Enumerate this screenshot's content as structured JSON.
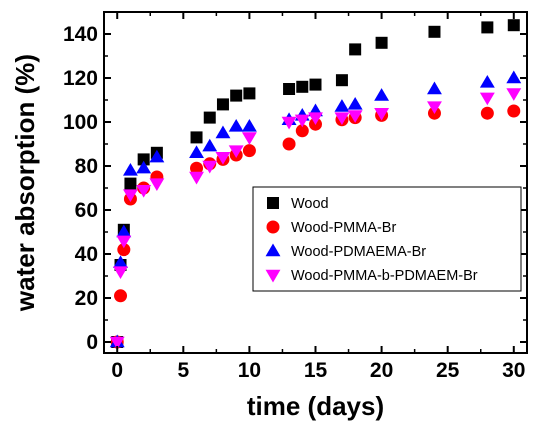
{
  "chart_data": {
    "type": "scatter",
    "title": "",
    "xlabel": "time (days)",
    "ylabel": "water absorption (%)",
    "xlim": [
      -1,
      31
    ],
    "ylim": [
      -5,
      150
    ],
    "xticks": [
      0,
      5,
      10,
      15,
      20,
      25,
      30
    ],
    "yticks": [
      0,
      20,
      40,
      60,
      80,
      100,
      120,
      140
    ],
    "grid": false,
    "legend_position": "center-right",
    "series": [
      {
        "name": "Wood",
        "marker": "square",
        "color": "#000000",
        "x": [
          0,
          0.25,
          0.5,
          1,
          2,
          3,
          6,
          7,
          8,
          9,
          10,
          13,
          14,
          15,
          17,
          18,
          20,
          24,
          28,
          30
        ],
        "y": [
          0,
          35,
          51,
          72,
          83,
          86,
          93,
          102,
          108,
          112,
          113,
          115,
          116,
          117,
          119,
          133,
          136,
          141,
          143,
          144
        ]
      },
      {
        "name": "Wood-PMMA-Br",
        "marker": "circle",
        "color": "#ff0000",
        "x": [
          0,
          0.25,
          0.5,
          1,
          2,
          3,
          6,
          7,
          8,
          9,
          10,
          13,
          14,
          15,
          17,
          18,
          20,
          24,
          28,
          30
        ],
        "y": [
          0,
          21,
          42,
          65,
          70,
          75,
          79,
          81,
          83,
          85,
          87,
          90,
          96,
          99,
          101,
          102,
          103,
          104,
          104,
          105
        ]
      },
      {
        "name": "Wood-PDMAEMA-Br",
        "marker": "triangle-up",
        "color": "#0000ff",
        "x": [
          0,
          0.25,
          0.5,
          1,
          2,
          3,
          6,
          7,
          8,
          9,
          10,
          13,
          14,
          15,
          17,
          18,
          20,
          24,
          28,
          30
        ],
        "y": [
          0,
          36,
          50,
          78,
          79,
          84,
          86,
          89,
          95,
          98,
          98,
          101,
          103,
          105,
          107,
          108,
          112,
          115,
          118,
          120
        ]
      },
      {
        "name": "Wood-PMMA-b-PDMAEM-Br",
        "marker": "triangle-down",
        "color": "#ff00ff",
        "x": [
          0,
          0.25,
          0.5,
          1,
          2,
          3,
          6,
          7,
          8,
          9,
          10,
          13,
          14,
          15,
          17,
          18,
          20,
          24,
          28,
          30
        ],
        "y": [
          0,
          32,
          46,
          67,
          69,
          72,
          75,
          80,
          84,
          87,
          93,
          100,
          101,
          102,
          102,
          103,
          104,
          107,
          111,
          113
        ]
      }
    ]
  }
}
